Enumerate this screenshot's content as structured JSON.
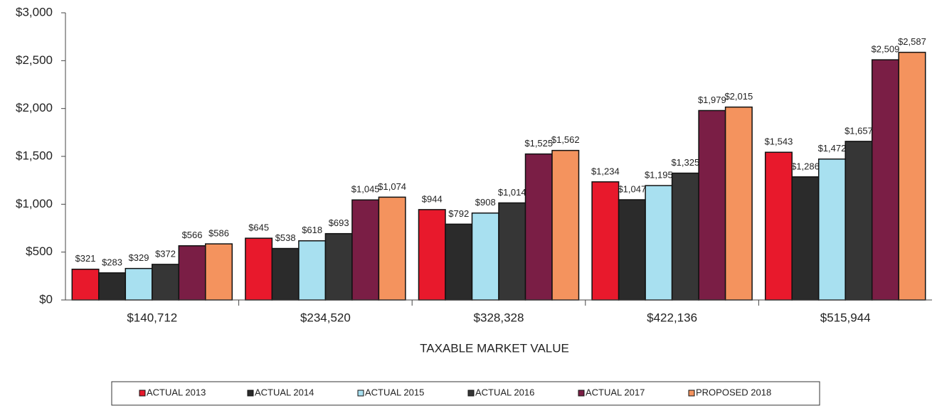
{
  "chart_data": {
    "type": "bar",
    "x_label": "TAXABLE MARKET VALUE",
    "categories": [
      "$140,712",
      "$234,520",
      "$328,328",
      "$422,136",
      "$515,944"
    ],
    "series": [
      {
        "name": "ACTUAL 2013",
        "color": "#e8192c",
        "values": [
          321,
          645,
          944,
          1234,
          1543
        ],
        "value_labels": [
          "$321",
          "$645",
          "$944",
          "$1,234",
          "$1,543"
        ]
      },
      {
        "name": "ACTUAL 2014",
        "color": "#2b2b2b",
        "values": [
          283,
          538,
          792,
          1047,
          1286
        ],
        "value_labels": [
          "$283",
          "$538",
          "$792",
          "$1,047",
          "$1,286"
        ]
      },
      {
        "name": "ACTUAL 2015",
        "color": "#a8e0f0",
        "values": [
          329,
          618,
          908,
          1195,
          1472
        ],
        "value_labels": [
          "$329",
          "$618",
          "$908",
          "$1,195",
          "$1,472"
        ]
      },
      {
        "name": "ACTUAL 2016",
        "color": "#363636",
        "values": [
          372,
          693,
          1014,
          1325,
          1657
        ],
        "value_labels": [
          "$372",
          "$693",
          "$1,014",
          "$1,325",
          "$1,657"
        ]
      },
      {
        "name": "ACTUAL 2017",
        "color": "#7a1e45",
        "values": [
          566,
          1045,
          1525,
          1979,
          2509
        ],
        "value_labels": [
          "$566",
          "$1,045",
          "$1,525",
          "$1,979",
          "$2,509"
        ]
      },
      {
        "name": "PROPOSED 2018",
        "color": "#f4935e",
        "values": [
          586,
          1074,
          1562,
          2015,
          2587
        ],
        "value_labels": [
          "$586",
          "$1,074",
          "$1,562",
          "$2,015",
          "$2,587"
        ]
      }
    ],
    "ylim": [
      0,
      3000
    ],
    "yticks": [
      {
        "value": 0,
        "label": "$0"
      },
      {
        "value": 500,
        "label": "$500"
      },
      {
        "value": 1000,
        "label": "$1,000"
      },
      {
        "value": 1500,
        "label": "$1,500"
      },
      {
        "value": 2000,
        "label": "$2,000"
      },
      {
        "value": 2500,
        "label": "$2,500"
      },
      {
        "value": 3000,
        "label": "$3,000"
      }
    ],
    "grid": false
  }
}
